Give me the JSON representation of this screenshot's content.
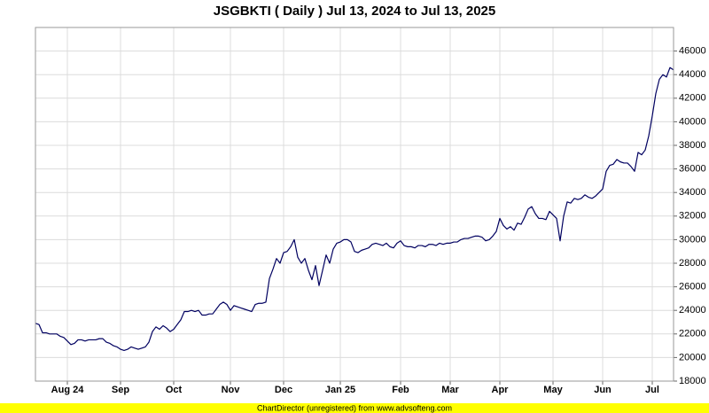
{
  "chart_data": {
    "type": "line",
    "title": "JSGBKTI ( Daily ) Jul 13, 2024 to Jul 13, 2025",
    "footer": "ChartDirector (unregistered) from www.advsofteng.com",
    "categories": [
      null,
      null,
      null,
      null,
      null,
      null,
      null,
      null,
      null,
      "Aug 24",
      null,
      null,
      null,
      null,
      null,
      null,
      null,
      null,
      null,
      null,
      null,
      null,
      null,
      null,
      "Sep",
      null,
      null,
      null,
      null,
      null,
      null,
      null,
      null,
      null,
      null,
      null,
      null,
      null,
      null,
      "Oct",
      null,
      null,
      null,
      null,
      null,
      null,
      null,
      null,
      null,
      null,
      null,
      null,
      null,
      null,
      null,
      "Nov",
      null,
      null,
      null,
      null,
      null,
      null,
      null,
      null,
      null,
      null,
      null,
      null,
      null,
      null,
      "Dec",
      null,
      null,
      null,
      null,
      null,
      null,
      null,
      null,
      null,
      null,
      null,
      null,
      null,
      null,
      null,
      "Jan 25",
      null,
      null,
      null,
      null,
      null,
      null,
      null,
      null,
      null,
      null,
      null,
      null,
      null,
      null,
      null,
      null,
      "Feb",
      null,
      null,
      null,
      null,
      null,
      null,
      null,
      null,
      null,
      null,
      null,
      null,
      null,
      "Mar",
      null,
      null,
      null,
      null,
      null,
      null,
      null,
      null,
      null,
      null,
      null,
      null,
      null,
      "Apr",
      null,
      null,
      null,
      null,
      null,
      null,
      null,
      null,
      null,
      null,
      null,
      null,
      null,
      null,
      "May",
      null,
      null,
      null,
      null,
      null,
      null,
      null,
      null,
      null,
      null,
      null,
      null,
      null,
      "Jun",
      null,
      null,
      null,
      null,
      null,
      null,
      null,
      null,
      null,
      null,
      null,
      null,
      null,
      "Jul",
      null,
      null,
      null,
      null,
      null,
      null
    ],
    "series": [
      {
        "color": "#000060",
        "values": [
          22900,
          22800,
          22100,
          22100,
          22000,
          22000,
          22000,
          21800,
          21700,
          21400,
          21100,
          21200,
          21500,
          21500,
          21400,
          21500,
          21500,
          21500,
          21600,
          21600,
          21300,
          21200,
          21000,
          20900,
          20700,
          20600,
          20700,
          20900,
          20800,
          20700,
          20800,
          20900,
          21300,
          22200,
          22600,
          22400,
          22700,
          22500,
          22200,
          22400,
          22800,
          23200,
          23900,
          23900,
          24000,
          23900,
          24000,
          23600,
          23600,
          23700,
          23700,
          24100,
          24500,
          24700,
          24500,
          24000,
          24400,
          24300,
          24200,
          24100,
          24000,
          23900,
          24500,
          24600,
          24600,
          24700,
          26700,
          27500,
          28400,
          28000,
          28900,
          29000,
          29400,
          30000,
          28500,
          28000,
          28400,
          27400,
          26600,
          27800,
          26100,
          27400,
          28700,
          28000,
          29200,
          29700,
          29800,
          30000,
          30000,
          29800,
          29000,
          28900,
          29100,
          29200,
          29300,
          29600,
          29700,
          29600,
          29500,
          29700,
          29400,
          29300,
          29700,
          29900,
          29500,
          29400,
          29400,
          29300,
          29500,
          29500,
          29400,
          29600,
          29600,
          29500,
          29700,
          29600,
          29700,
          29700,
          29800,
          29800,
          30000,
          30100,
          30100,
          30200,
          30300,
          30300,
          30200,
          29900,
          30000,
          30300,
          30700,
          31800,
          31200,
          30900,
          31100,
          30800,
          31400,
          31300,
          31900,
          32600,
          32800,
          32200,
          31800,
          31800,
          31700,
          32400,
          32100,
          31800,
          29900,
          32000,
          33200,
          33100,
          33500,
          33400,
          33500,
          33800,
          33600,
          33500,
          33700,
          34000,
          34300,
          35800,
          36300,
          36400,
          36800,
          36600,
          36500,
          36500,
          36200,
          35800,
          37400,
          37200,
          37600,
          38800,
          40500,
          42400,
          43600,
          44000,
          43800,
          44600,
          44400
        ]
      }
    ],
    "ylim": [
      18000,
      48000
    ],
    "yticks": [
      18000,
      20000,
      22000,
      24000,
      26000,
      28000,
      30000,
      32000,
      34000,
      36000,
      38000,
      40000,
      42000,
      44000,
      46000
    ],
    "grid": true
  }
}
